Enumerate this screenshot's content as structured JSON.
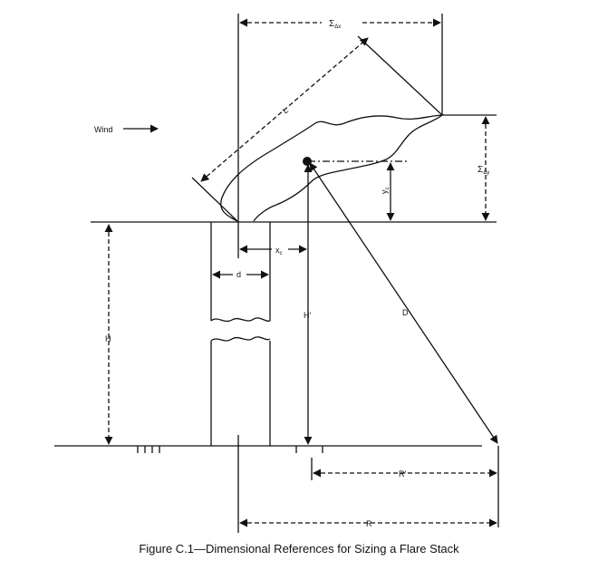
{
  "figure": {
    "caption": "Figure C.1—Dimensional References for Sizing a Flare Stack",
    "labels": {
      "wind": "Wind",
      "sum_dx": "Σ",
      "sum_dx_sub": "Δx",
      "sum_dy": "Σ",
      "sum_dy_sub": "Δy",
      "L": "L",
      "yc": "y",
      "yc_sub": "c",
      "xc": "x",
      "xc_sub": "c",
      "d": "d",
      "H_prime": "H′",
      "D": "D",
      "H": "H",
      "R_prime": "R′",
      "R": "R"
    }
  }
}
